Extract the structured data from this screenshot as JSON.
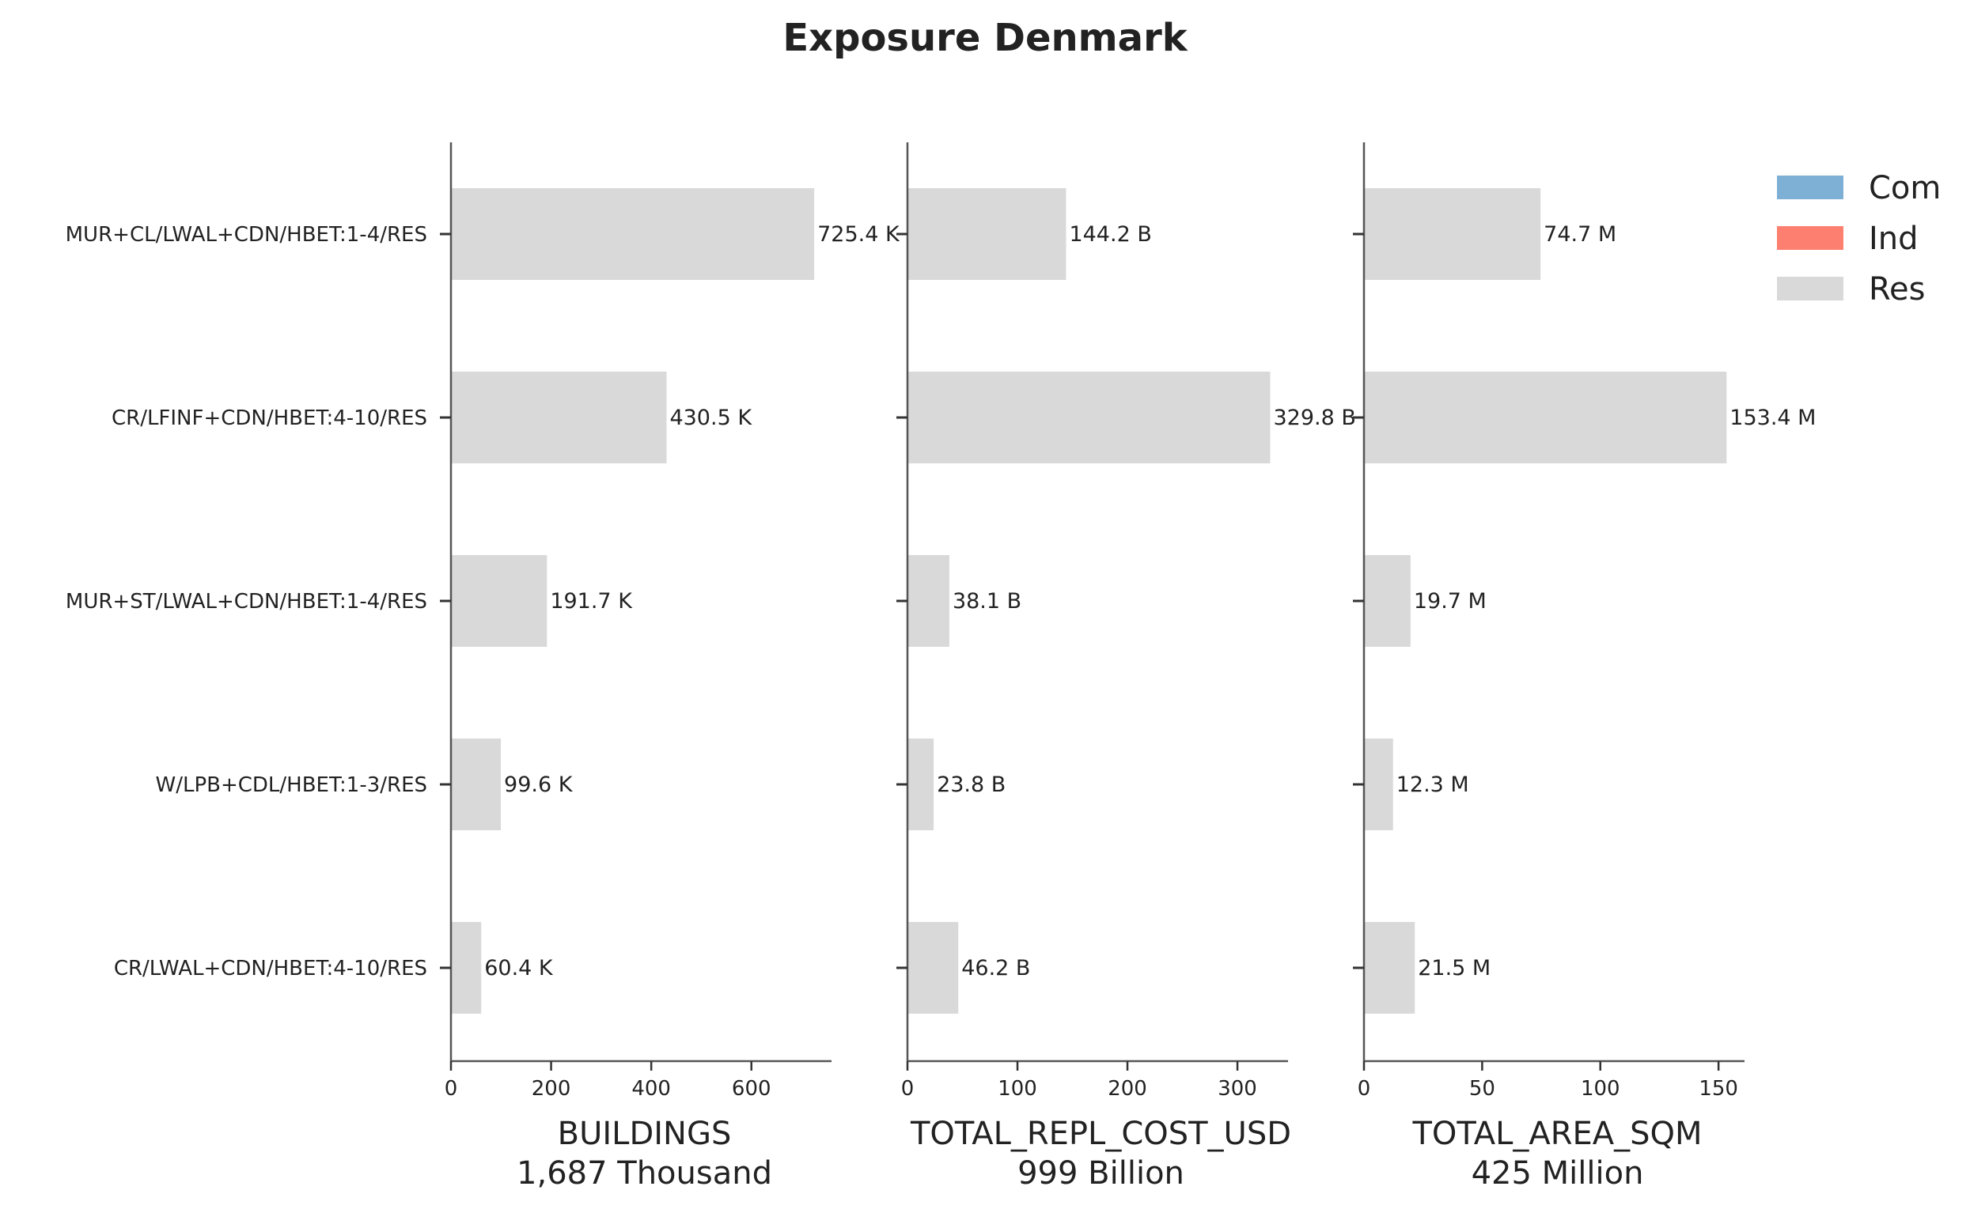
{
  "title": "Exposure Denmark",
  "chart_data": {
    "type": "bar",
    "orientation": "horizontal",
    "stacked": true,
    "categories": [
      "MUR+CL/LWAL+CDN/HBET:1-4/RES",
      "CR/LFINF+CDN/HBET:4-10/RES",
      "MUR+ST/LWAL+CDN/HBET:1-4/RES",
      "W/LPB+CDL/HBET:1-3/RES",
      "CR/LWAL+CDN/HBET:4-10/RES"
    ],
    "legend": {
      "position": "top-right",
      "entries": [
        {
          "name": "Com",
          "color": "#7eb0d5"
        },
        {
          "name": "Ind",
          "color": "#fd7f6f"
        },
        {
          "name": "Res",
          "color": "#d9d9d9"
        }
      ]
    },
    "panels": [
      {
        "xlabel": "BUILDINGS",
        "subtitle": "1,687 Thousand",
        "xlim": [
          0,
          760
        ],
        "xticks": [
          0,
          200,
          400,
          600
        ],
        "series": [
          {
            "name": "Res",
            "values": [
              725.4,
              430.5,
              191.7,
              99.6,
              60.4
            ]
          }
        ],
        "value_labels": [
          "725.4 K",
          "430.5 K",
          "191.7 K",
          "99.6 K",
          "60.4 K"
        ]
      },
      {
        "xlabel": "TOTAL_REPL_COST_USD",
        "subtitle": "999 Billion",
        "xlim": [
          0,
          346
        ],
        "xticks": [
          0,
          100,
          200,
          300
        ],
        "series": [
          {
            "name": "Res",
            "values": [
              144.2,
              329.8,
              38.1,
              23.8,
              46.2
            ]
          }
        ],
        "value_labels": [
          "144.2 B",
          "329.8 B",
          "38.1 B",
          "23.8 B",
          "46.2 B"
        ]
      },
      {
        "xlabel": "TOTAL_AREA_SQM",
        "subtitle": "425 Million",
        "xlim": [
          0,
          161
        ],
        "xticks": [
          0,
          50,
          100,
          150
        ],
        "series": [
          {
            "name": "Res",
            "values": [
              74.7,
              153.4,
              19.7,
              12.3,
              21.5
            ]
          }
        ],
        "value_labels": [
          "74.7 M",
          "153.4 M",
          "19.7 M",
          "12.3 M",
          "21.5 M"
        ]
      }
    ]
  }
}
